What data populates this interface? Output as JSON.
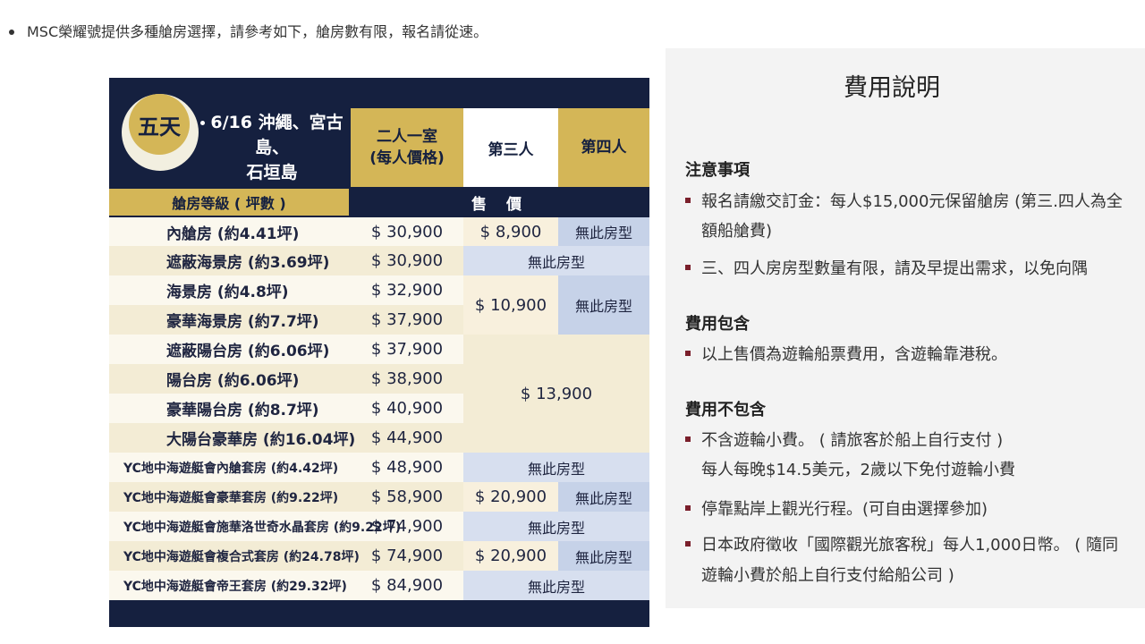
{
  "intro": {
    "text": "MSC榮耀號提供多種艙房選擇，請參考如下，艙房數有限，報名請從速。"
  },
  "table": {
    "badge": "五天",
    "itinerary_line1": "6/16 沖繩、宮古島、",
    "itinerary_line2": "石垣島",
    "col_double_line1": "二人一室",
    "col_double_line2": "(每人價格)",
    "col_third": "第三人",
    "col_fourth": "第四人",
    "col_cabin": "艙房等級 ( 坪數 )",
    "col_price": "售 價",
    "rows": [
      {
        "room": "內艙房 (約4.41坪)",
        "price": "$ 30,900"
      },
      {
        "room": "遮蔽海景房 (約3.69坪)",
        "price": "$ 30,900"
      },
      {
        "room": "海景房 (約4.8坪)",
        "price": "$ 32,900"
      },
      {
        "room": "豪華海景房 (約7.7坪)",
        "price": "$ 37,900"
      },
      {
        "room": "遮蔽陽台房 (約6.06坪)",
        "price": "$ 37,900"
      },
      {
        "room": "陽台房 (約6.06坪)",
        "price": "$ 38,900"
      },
      {
        "room": "豪華陽台房 (約8.7坪)",
        "price": "$ 40,900"
      },
      {
        "room": "大陽台豪華房 (約16.04坪)",
        "price": "$ 44,900"
      },
      {
        "room": "YC地中海遊艇會內艙套房 (約4.42坪)",
        "price": "$ 48,900"
      },
      {
        "room": "YC地中海遊艇會豪華套房 (約9.22坪)",
        "price": "$ 58,900"
      },
      {
        "room": "YC地中海遊艇會施華洛世奇水晶套房 (約9.22坪)",
        "price": "$ 74,900"
      },
      {
        "room": "YC地中海遊艇會複合式套房 (約24.78坪)",
        "price": "$ 74,900"
      },
      {
        "room": "YC地中海遊艇會帝王套房 (約29.32坪)",
        "price": "$ 84,900"
      }
    ],
    "third_1": "$ 8,900",
    "third_2": "$ 10,900",
    "third_3": "$ 13,900",
    "third_4": "$ 20,900",
    "third_5": "$ 20,900",
    "na": "無此房型"
  },
  "panel": {
    "title": "費用說明",
    "notes_heading": "注意事項",
    "note1_line1": "報名請繳交訂金：每人$15,000元保留艙房 (第三.四人為全",
    "note1_line2": "額船艙費)",
    "note2": "三、四人房房型數量有限，請及早提出需求，以免向隅",
    "incl_heading": "費用包含",
    "incl1": "以上售價為遊輪船票費用，含遊輪靠港稅。",
    "excl_heading": "費用不包含",
    "excl1_line1": "不含遊輪小費。 ( 請旅客於船上自行支付 )",
    "excl1_line2": "每人每晚$14.5美元，2歲以下免付遊輪小費",
    "excl2": "停靠點岸上觀光行程。(可自由選擇參加)",
    "excl3_line1": "日本政府徵收「國際觀光旅客稅」每人1,000日幣。 ( 隨同",
    "excl3_line2": "遊輪小費於船上自行支付給船公司 )"
  }
}
